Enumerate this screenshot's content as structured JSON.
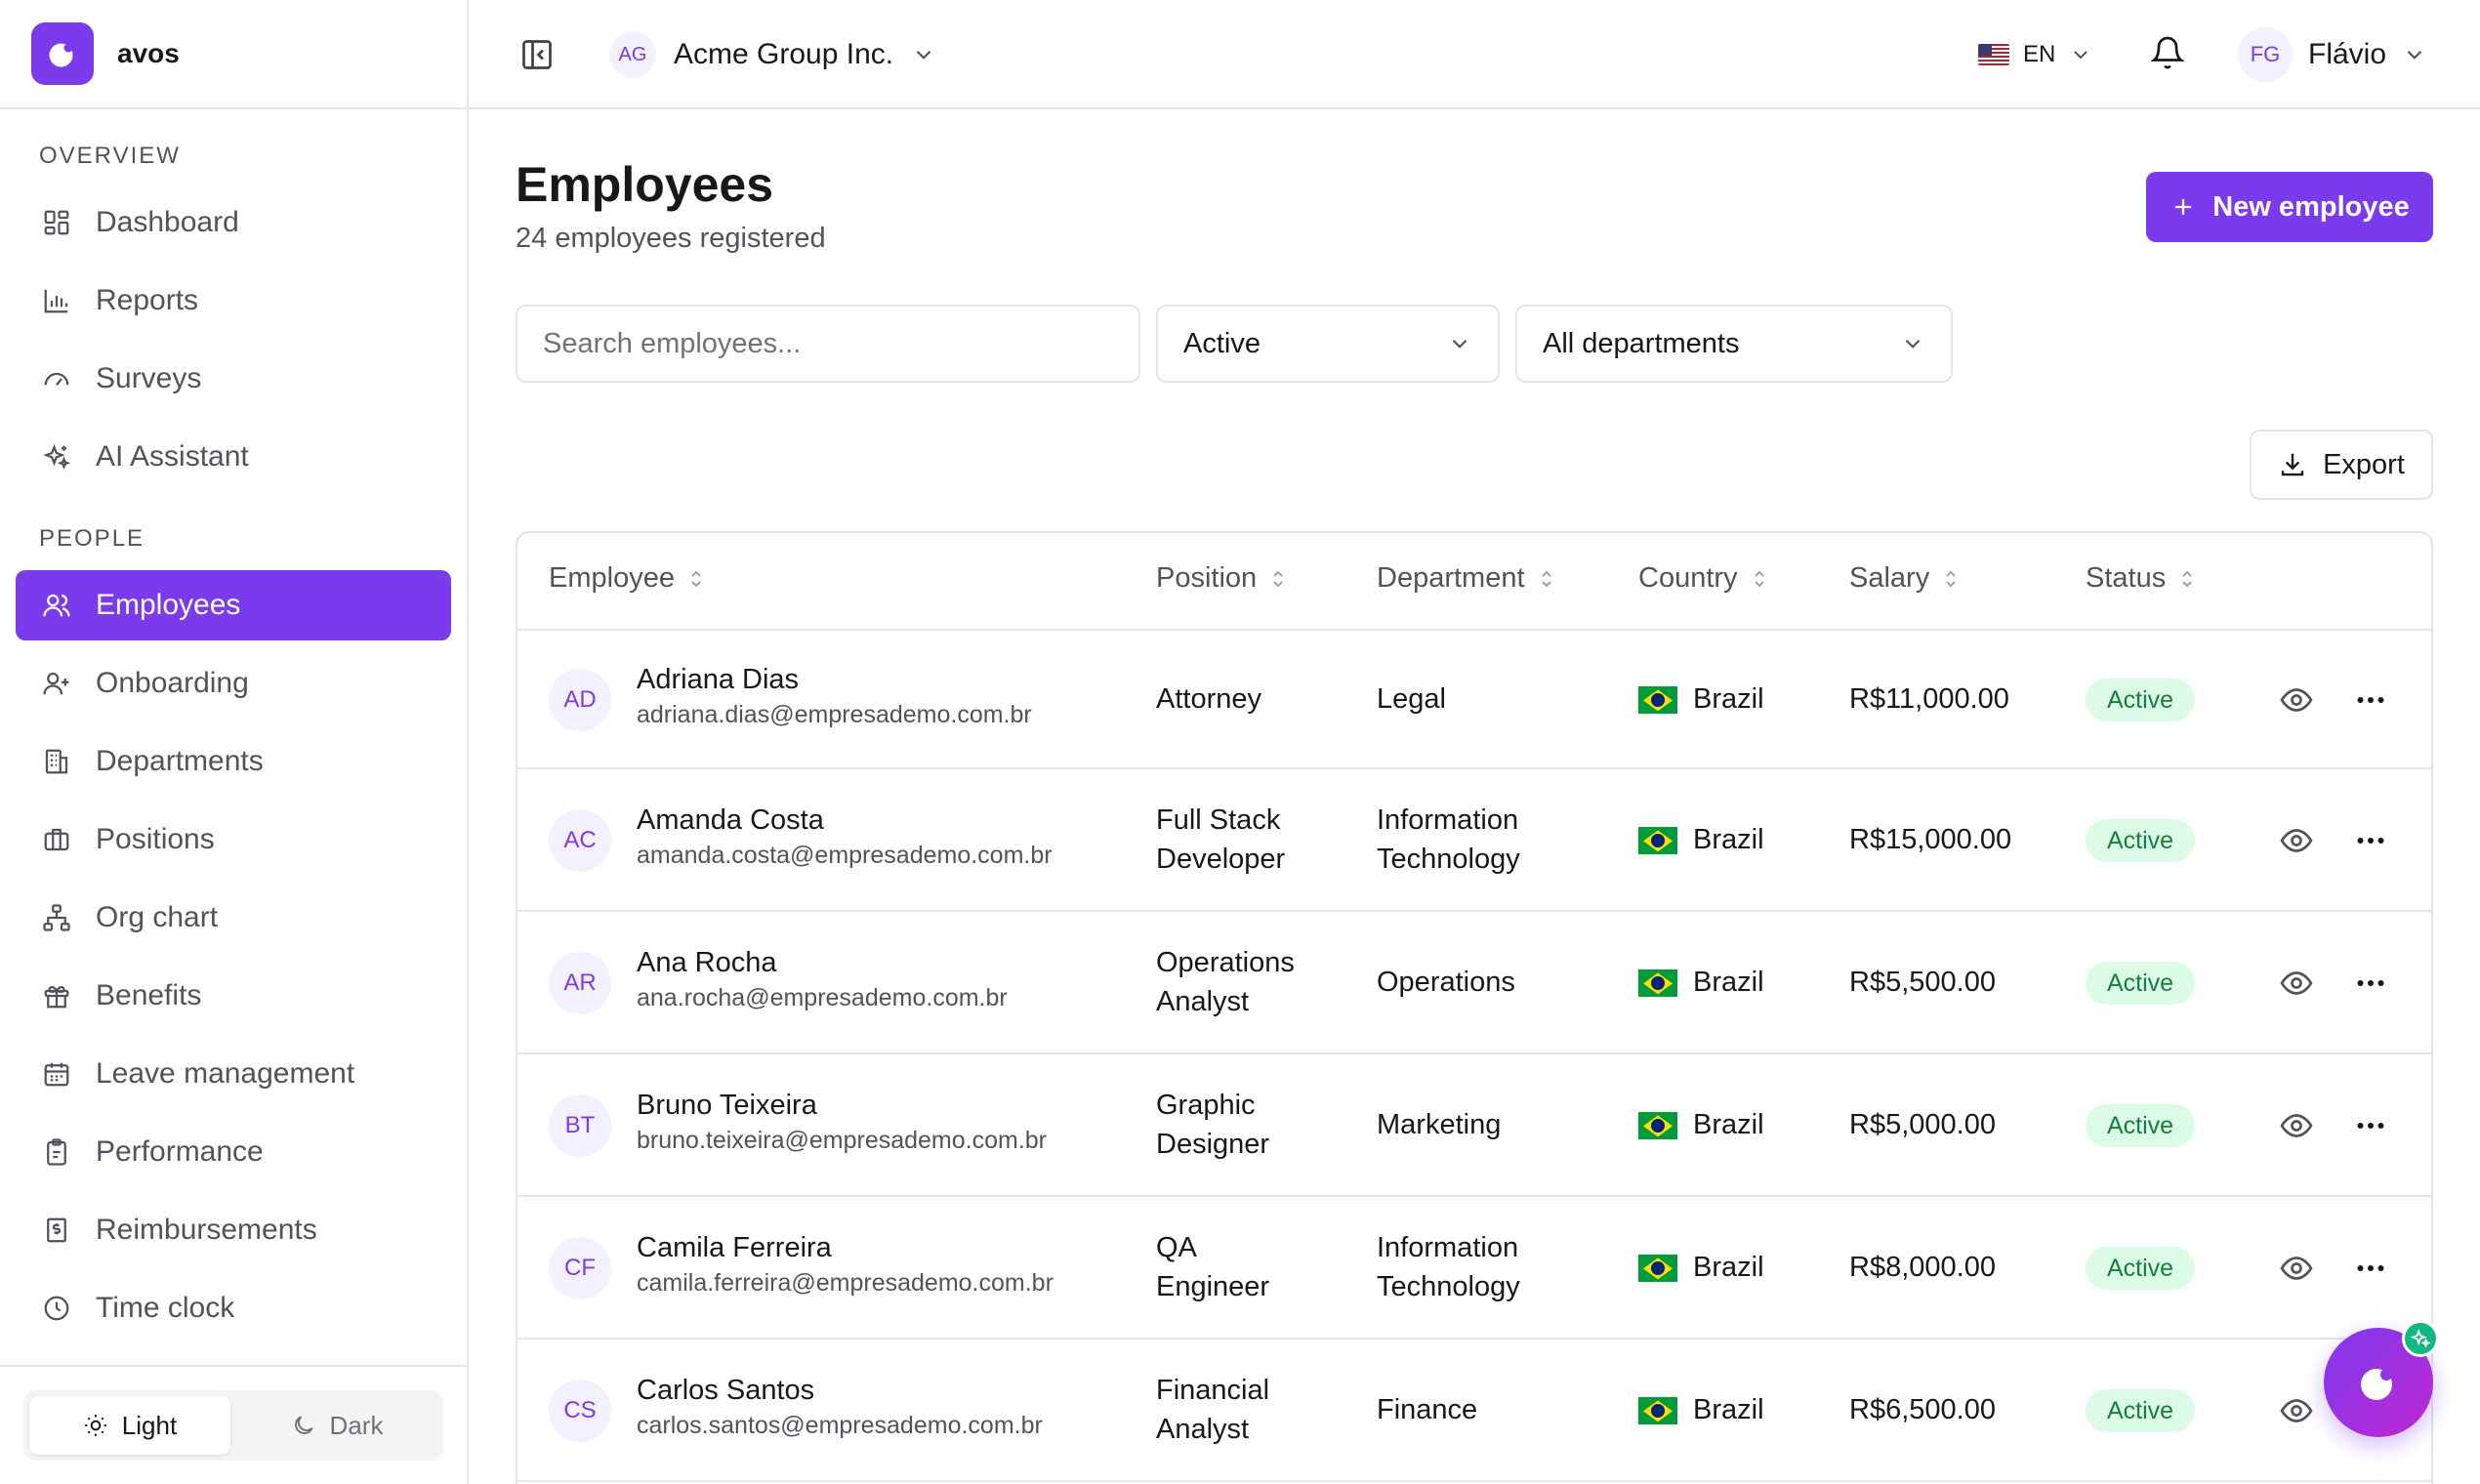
{
  "brand": {
    "name": "avos",
    "accent": "#7c3aed"
  },
  "sidebar": {
    "sections": [
      {
        "title": "OVERVIEW"
      },
      {
        "title": "PEOPLE"
      }
    ],
    "items": [
      {
        "label": "Dashboard",
        "icon": "dashboard-icon"
      },
      {
        "label": "Reports",
        "icon": "bar-chart-icon"
      },
      {
        "label": "Surveys",
        "icon": "gauge-icon"
      },
      {
        "label": "AI Assistant",
        "icon": "sparkles-icon"
      },
      {
        "label": "Employees",
        "icon": "users-icon",
        "active": true
      },
      {
        "label": "Onboarding",
        "icon": "user-plus-icon"
      },
      {
        "label": "Departments",
        "icon": "building-icon"
      },
      {
        "label": "Positions",
        "icon": "briefcase-icon"
      },
      {
        "label": "Org chart",
        "icon": "org-chart-icon"
      },
      {
        "label": "Benefits",
        "icon": "gift-icon"
      },
      {
        "label": "Leave management",
        "icon": "calendar-icon"
      },
      {
        "label": "Performance",
        "icon": "clipboard-icon"
      },
      {
        "label": "Reimbursements",
        "icon": "receipt-icon"
      },
      {
        "label": "Time clock",
        "icon": "clock-icon"
      }
    ],
    "theme": {
      "light_label": "Light",
      "dark_label": "Dark",
      "selected": "Light"
    }
  },
  "topbar": {
    "org": {
      "initials": "AG",
      "name": "Acme Group Inc."
    },
    "language": "EN",
    "user": {
      "initials": "FG",
      "name": "Flávio"
    }
  },
  "page": {
    "title": "Employees",
    "subtitle": "24 employees registered",
    "new_button": "New employee",
    "export_button": "Export"
  },
  "filters": {
    "search_placeholder": "Search employees...",
    "status": "Active",
    "department": "All departments"
  },
  "table": {
    "columns": [
      "Employee",
      "Position",
      "Department",
      "Country",
      "Salary",
      "Status"
    ],
    "rows": [
      {
        "initials": "AD",
        "name": "Adriana Dias",
        "email": "adriana.dias@empresademo.com.br",
        "position": [
          "Attorney"
        ],
        "department": [
          "Legal"
        ],
        "country": "Brazil",
        "salary": "R$11,000.00",
        "status": "Active"
      },
      {
        "initials": "AC",
        "name": "Amanda Costa",
        "email": "amanda.costa@empresademo.com.br",
        "position": [
          "Full Stack",
          "Developer"
        ],
        "department": [
          "Information",
          "Technology"
        ],
        "country": "Brazil",
        "salary": "R$15,000.00",
        "status": "Active"
      },
      {
        "initials": "AR",
        "name": "Ana Rocha",
        "email": "ana.rocha@empresademo.com.br",
        "position": [
          "Operations",
          "Analyst"
        ],
        "department": [
          "Operations"
        ],
        "country": "Brazil",
        "salary": "R$5,500.00",
        "status": "Active"
      },
      {
        "initials": "BT",
        "name": "Bruno Teixeira",
        "email": "bruno.teixeira@empresademo.com.br",
        "position": [
          "Graphic",
          "Designer"
        ],
        "department": [
          "Marketing"
        ],
        "country": "Brazil",
        "salary": "R$5,000.00",
        "status": "Active"
      },
      {
        "initials": "CF",
        "name": "Camila Ferreira",
        "email": "camila.ferreira@empresademo.com.br",
        "position": [
          "QA",
          "Engineer"
        ],
        "department": [
          "Information",
          "Technology"
        ],
        "country": "Brazil",
        "salary": "R$8,000.00",
        "status": "Active"
      },
      {
        "initials": "CS",
        "name": "Carlos Santos",
        "email": "carlos.santos@empresademo.com.br",
        "position": [
          "Financial",
          "Analyst"
        ],
        "department": [
          "Finance"
        ],
        "country": "Brazil",
        "salary": "R$6,500.00",
        "status": "Active"
      }
    ]
  }
}
